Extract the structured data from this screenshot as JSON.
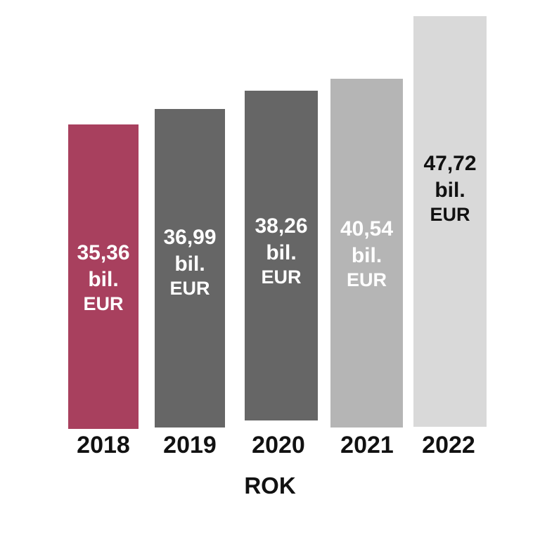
{
  "chart_data": {
    "type": "bar",
    "categories": [
      "2018",
      "2019",
      "2020",
      "2021",
      "2022"
    ],
    "values": [
      35.36,
      36.99,
      38.26,
      40.54,
      47.72
    ],
    "data_labels": [
      {
        "value": "35,36",
        "unit_line1": "bil.",
        "unit_line2": "EUR"
      },
      {
        "value": "36,99",
        "unit_line1": "bil.",
        "unit_line2": "EUR"
      },
      {
        "value": "38,26",
        "unit_line1": "bil.",
        "unit_line2": "EUR"
      },
      {
        "value": "40,54",
        "unit_line1": "bil.",
        "unit_line2": "EUR"
      },
      {
        "value": "47,72",
        "unit_line1": "bil.",
        "unit_line2": "EUR"
      }
    ],
    "colors": [
      "#A8405E",
      "#666666",
      "#666666",
      "#B5B5B5",
      "#D9D9D9"
    ],
    "label_colors": [
      "#ffffff",
      "#ffffff",
      "#ffffff",
      "#ffffff",
      "#111111"
    ],
    "title": "",
    "xlabel": "ROK",
    "ylabel": "",
    "grid": false,
    "legend": "none"
  }
}
